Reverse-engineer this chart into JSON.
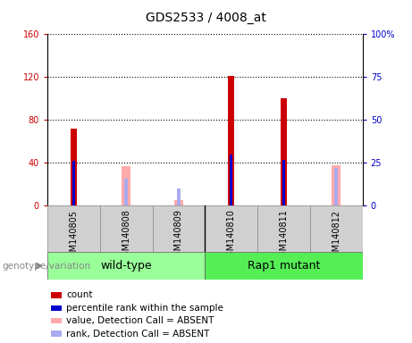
{
  "title": "GDS2533 / 4008_at",
  "samples": [
    "GSM140805",
    "GSM140808",
    "GSM140809",
    "GSM140810",
    "GSM140811",
    "GSM140812"
  ],
  "red_bars": [
    72,
    0,
    0,
    121,
    100,
    0
  ],
  "blue_bars": [
    26,
    0,
    0,
    30,
    27,
    0
  ],
  "pink_bars": [
    0,
    37,
    5,
    0,
    0,
    38
  ],
  "lightblue_bars": [
    0,
    16,
    10,
    0,
    0,
    22
  ],
  "left_ylim": [
    0,
    160
  ],
  "left_yticks": [
    0,
    40,
    80,
    120,
    160
  ],
  "right_ylim": [
    0,
    100
  ],
  "right_yticks": [
    0,
    25,
    50,
    75,
    100
  ],
  "right_yticklabels": [
    "0",
    "25",
    "50",
    "75",
    "100%"
  ],
  "left_tick_color": "#cc0000",
  "right_tick_color": "#0000cc",
  "groups": [
    {
      "label": "wild-type",
      "indices": [
        0,
        1,
        2
      ],
      "color": "#99ff99"
    },
    {
      "label": "Rap1 mutant",
      "indices": [
        3,
        4,
        5
      ],
      "color": "#55ee55"
    }
  ],
  "group_label": "genotype/variation",
  "legend_items": [
    {
      "label": "count",
      "color": "#cc0000"
    },
    {
      "label": "percentile rank within the sample",
      "color": "#0000cc"
    },
    {
      "label": "value, Detection Call = ABSENT",
      "color": "#ffaaaa"
    },
    {
      "label": "rank, Detection Call = ABSENT",
      "color": "#aaaaee"
    }
  ],
  "red_bar_width": 0.12,
  "blue_bar_width": 0.05,
  "plot_bg": "#ffffff",
  "sample_box_bg": "#d0d0d0",
  "grid_color": "black",
  "fig_bg": "#ffffff",
  "title_fontsize": 10,
  "tick_fontsize": 7,
  "sample_fontsize": 7,
  "group_fontsize": 9,
  "legend_fontsize": 7.5
}
